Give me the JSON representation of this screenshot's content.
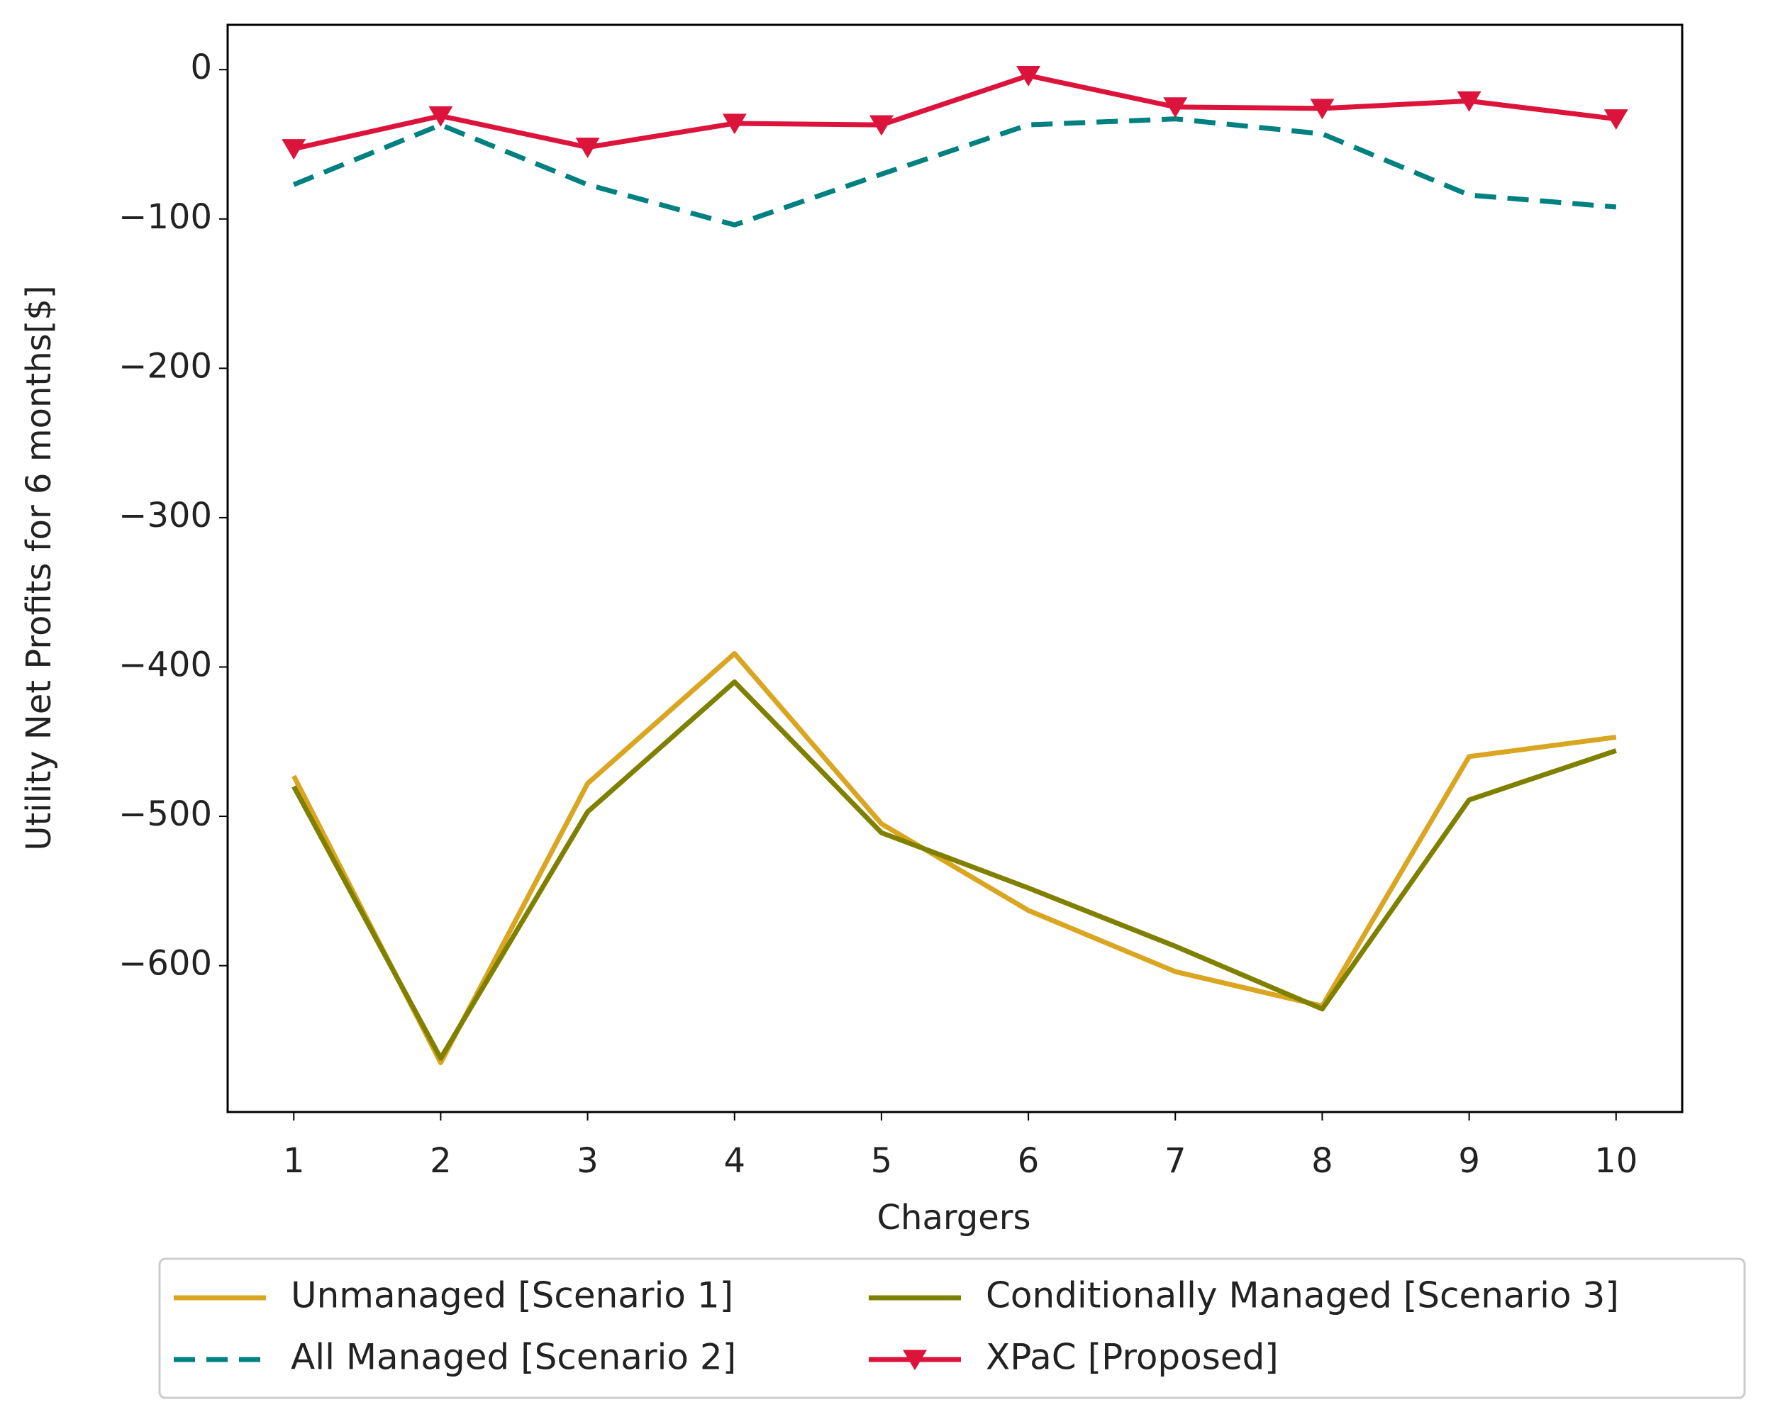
{
  "chart_data": {
    "type": "line",
    "x_label": "Chargers",
    "y_label": "Utility Net Profits for 6 months[$]",
    "x": [
      1,
      2,
      3,
      4,
      5,
      6,
      7,
      8,
      9,
      10
    ],
    "xlim": [
      0.55,
      10.45
    ],
    "xticks": [
      1,
      2,
      3,
      4,
      5,
      6,
      7,
      8,
      9,
      10
    ],
    "ylim": [
      -698,
      30
    ],
    "yticks": [
      {
        "value": 0,
        "label": "0"
      },
      {
        "value": -100,
        "label": "−100"
      },
      {
        "value": -200,
        "label": "−200"
      },
      {
        "value": -300,
        "label": "−300"
      },
      {
        "value": -400,
        "label": "−400"
      },
      {
        "value": -500,
        "label": "−500"
      },
      {
        "value": -600,
        "label": "−600"
      }
    ],
    "grid": false,
    "legend": "below",
    "legend_columns": 2,
    "series": [
      {
        "name": "Unmanaged [Scenario 1]",
        "color": "#DAA520",
        "style": "solid",
        "marker": "none",
        "values": [
          -473,
          -665,
          -478,
          -391,
          -505,
          -563,
          -604,
          -627,
          -460,
          -447
        ]
      },
      {
        "name": "All Managed [Scenario 2]",
        "color": "#008080",
        "style": "dashed",
        "marker": "none",
        "values": [
          -77,
          -37,
          -77,
          -104,
          -70,
          -37,
          -33,
          -43,
          -84,
          -92
        ]
      },
      {
        "name": "Conditionally Managed [Scenario 3]",
        "color": "#808000",
        "style": "solid",
        "marker": "none",
        "values": [
          -480,
          -662,
          -497,
          -410,
          -511,
          -548,
          -587,
          -629,
          -489,
          -456
        ]
      },
      {
        "name": "XPaC [Proposed]",
        "color": "#DC143C",
        "style": "solid",
        "marker": "triangle-down",
        "values": [
          -53,
          -31,
          -52,
          -36,
          -37,
          -4,
          -25,
          -26,
          -21,
          -33
        ]
      }
    ]
  }
}
